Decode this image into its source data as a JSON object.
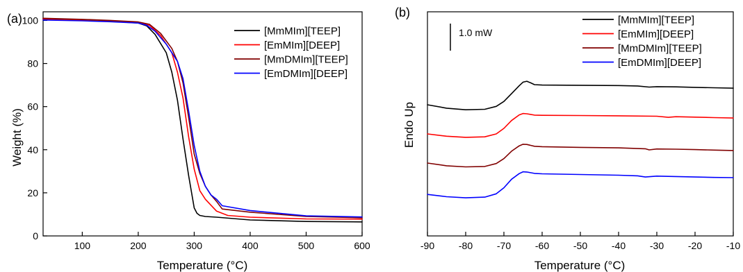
{
  "chart_data": [
    {
      "panel_label": "(a)",
      "type": "line",
      "xlabel": "Temperature (°C)",
      "ylabel": "Weight (%)",
      "xlim": [
        30,
        600
      ],
      "ylim": [
        0,
        104
      ],
      "xticks": [
        100,
        200,
        300,
        400,
        500,
        600
      ],
      "yticks": [
        0,
        20,
        40,
        60,
        80,
        100
      ],
      "legend_position": "top-right",
      "series": [
        {
          "name": "[MmMIm][TEEP]",
          "color": "#000000",
          "x": [
            30,
            100,
            150,
            200,
            215,
            230,
            250,
            260,
            270,
            280,
            290,
            300,
            305,
            310,
            320,
            340,
            400,
            500,
            600
          ],
          "y": [
            100.8,
            100.2,
            99.6,
            98.8,
            97.5,
            93.5,
            85,
            76,
            63,
            45,
            28,
            13,
            10.5,
            9.5,
            9.0,
            8.7,
            7.4,
            6.7,
            6.5
          ]
        },
        {
          "name": "[EmMIm][DEEP]",
          "color": "#ff0000",
          "x": [
            30,
            100,
            150,
            200,
            220,
            240,
            260,
            270,
            280,
            290,
            300,
            310,
            320,
            340,
            360,
            400,
            500,
            600
          ],
          "y": [
            100.5,
            100,
            99.5,
            99,
            97.8,
            93,
            85,
            76,
            64,
            46,
            31,
            21,
            17,
            11.5,
            9.5,
            8.7,
            7.9,
            7.8
          ]
        },
        {
          "name": "[MmDMIm][TEEP]",
          "color": "#800000",
          "x": [
            30,
            100,
            150,
            200,
            220,
            240,
            260,
            270,
            280,
            290,
            300,
            310,
            320,
            330,
            340,
            350,
            400,
            500,
            600
          ],
          "y": [
            101,
            100.5,
            100,
            99.3,
            98.2,
            94,
            87,
            81,
            71,
            55,
            38,
            29,
            23,
            19,
            16,
            12.5,
            11,
            9,
            8.4
          ]
        },
        {
          "name": "[EmDMIm][DEEP]",
          "color": "#0000ff",
          "x": [
            30,
            100,
            150,
            200,
            215,
            230,
            250,
            270,
            280,
            290,
            300,
            310,
            320,
            330,
            340,
            350,
            400,
            500,
            600
          ],
          "y": [
            100.2,
            99.8,
            99.4,
            98.8,
            97.8,
            95,
            89,
            81,
            73,
            58,
            42,
            30,
            23,
            19,
            17,
            14,
            11.8,
            9.3,
            8.8
          ]
        }
      ]
    },
    {
      "panel_label": "(b)",
      "type": "line",
      "xlabel": "Temperature (°C)",
      "ylabel": "Endo Up",
      "xlim": [
        -90,
        -10
      ],
      "ylim": [
        0,
        100
      ],
      "xticks": [
        -90,
        -80,
        -70,
        -60,
        -50,
        -40,
        -30,
        -20,
        -10
      ],
      "scale_bar_label": "1.0 mW",
      "legend_position": "top-right",
      "series": [
        {
          "name": "[MmMIm][TEEP]",
          "color": "#000000",
          "x": [
            -90,
            -85,
            -80,
            -75,
            -72,
            -70,
            -68,
            -66,
            -65,
            -64,
            -63,
            -62,
            -60,
            -50,
            -40,
            -35,
            -32,
            -30,
            -25,
            -20,
            -15,
            -10
          ],
          "y": [
            58.5,
            57,
            56.3,
            56.5,
            57.8,
            60,
            63.5,
            67,
            68.6,
            69,
            68.3,
            67.5,
            67.3,
            67.2,
            67.1,
            66.9,
            66.4,
            66.6,
            66.5,
            66.3,
            66.1,
            65.9
          ]
        },
        {
          "name": "[EmMIm][DEEP]",
          "color": "#ff0000",
          "x": [
            -90,
            -85,
            -80,
            -75,
            -72,
            -70,
            -68,
            -66,
            -65,
            -64,
            -63,
            -62,
            -60,
            -50,
            -40,
            -30,
            -27,
            -25,
            -20,
            -15,
            -10
          ],
          "y": [
            45.5,
            44.5,
            44,
            44.2,
            45.5,
            48,
            51.5,
            54,
            54.6,
            54.5,
            54.2,
            53.9,
            53.8,
            53.7,
            53.6,
            53.4,
            52.9,
            53.2,
            53,
            52.8,
            52.6
          ]
        },
        {
          "name": "[MmDMIm][TEEP]",
          "color": "#800000",
          "x": [
            -90,
            -85,
            -80,
            -75,
            -72,
            -70,
            -68,
            -66,
            -65,
            -64,
            -63,
            -62,
            -60,
            -50,
            -40,
            -33,
            -32,
            -30,
            -25,
            -20,
            -15,
            -10
          ],
          "y": [
            32.5,
            31.3,
            30.8,
            31,
            32.3,
            34.5,
            37.8,
            40.2,
            40.9,
            40.8,
            40.4,
            40,
            39.8,
            39.5,
            39.3,
            38.9,
            38.4,
            38.8,
            38.7,
            38.5,
            38.3,
            38.1
          ]
        },
        {
          "name": "[EmDMIm][DEEP]",
          "color": "#0000ff",
          "x": [
            -90,
            -85,
            -80,
            -75,
            -72,
            -70,
            -68,
            -66,
            -65,
            -64,
            -63,
            -62,
            -60,
            -50,
            -40,
            -35,
            -33,
            -30,
            -25,
            -20,
            -15,
            -10
          ],
          "y": [
            18.5,
            17.5,
            17,
            17.3,
            18.8,
            21.5,
            25.3,
            27.8,
            28.6,
            28.5,
            28.2,
            27.9,
            27.7,
            27.4,
            27.1,
            26.8,
            26.3,
            26.7,
            26.5,
            26.3,
            26.1,
            26
          ]
        }
      ]
    }
  ]
}
